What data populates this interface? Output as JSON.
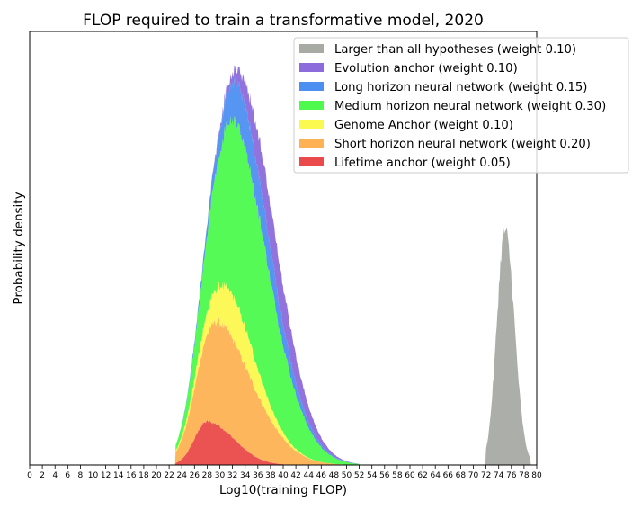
{
  "chart_data": {
    "type": "area",
    "title": "FLOP required to train a transformative model, 2020",
    "xlabel": "Log10(training FLOP)",
    "ylabel": "Probability density",
    "xlim": [
      0,
      80
    ],
    "ylim": [
      0,
      1.0
    ],
    "x_ticks": [
      0,
      2,
      4,
      6,
      8,
      10,
      12,
      14,
      16,
      18,
      20,
      22,
      24,
      26,
      28,
      30,
      32,
      34,
      36,
      38,
      40,
      42,
      44,
      46,
      48,
      50,
      52,
      54,
      56,
      58,
      60,
      62,
      64,
      66,
      68,
      70,
      72,
      74,
      76,
      78,
      80
    ],
    "y_ticks_visible": false,
    "stacked": true,
    "legend_position": "top-right",
    "series": [
      {
        "name": "Larger than all hypotheses (weight 0.10)",
        "color": "#a8aba4",
        "peak_x": 75,
        "peak_density": 0.54,
        "spread_left": 1.3,
        "spread_right": 1.5,
        "support": [
          72,
          79
        ]
      },
      {
        "name": "Evolution anchor (weight 0.10)",
        "color": "#8c6bdc",
        "peak_x": 38,
        "peak_density": 0.1,
        "spread_left": 3.5,
        "spread_right": 4.2,
        "support": [
          24,
          52
        ]
      },
      {
        "name": "Long horizon neural network (weight 0.15)",
        "color": "#4d8ff0",
        "peak_x": 34,
        "peak_density": 0.1,
        "spread_left": 3.6,
        "spread_right": 5.0,
        "support": [
          24,
          52
        ]
      },
      {
        "name": "Medium horizon neural network (weight 0.30)",
        "color": "#4dfa4d",
        "peak_x": 33,
        "peak_density": 0.42,
        "spread_left": 3.8,
        "spread_right": 5.8,
        "support": [
          23,
          52
        ]
      },
      {
        "name": "Genome Anchor (weight 0.10)",
        "color": "#fbf84f",
        "peak_x": 32,
        "peak_density": 0.1,
        "spread_left": 3.5,
        "spread_right": 4.0,
        "support": [
          23,
          48
        ]
      },
      {
        "name": "Short horizon neural network (weight 0.20)",
        "color": "#feb254",
        "peak_x": 30,
        "peak_density": 0.24,
        "spread_left": 3.3,
        "spread_right": 6.0,
        "support": [
          23,
          56
        ]
      },
      {
        "name": "Lifetime anchor (weight 0.05)",
        "color": "#ea4a4a",
        "peak_x": 28,
        "peak_density": 0.1,
        "spread_left": 2.0,
        "spread_right": 4.2,
        "support": [
          23,
          42
        ]
      }
    ]
  }
}
